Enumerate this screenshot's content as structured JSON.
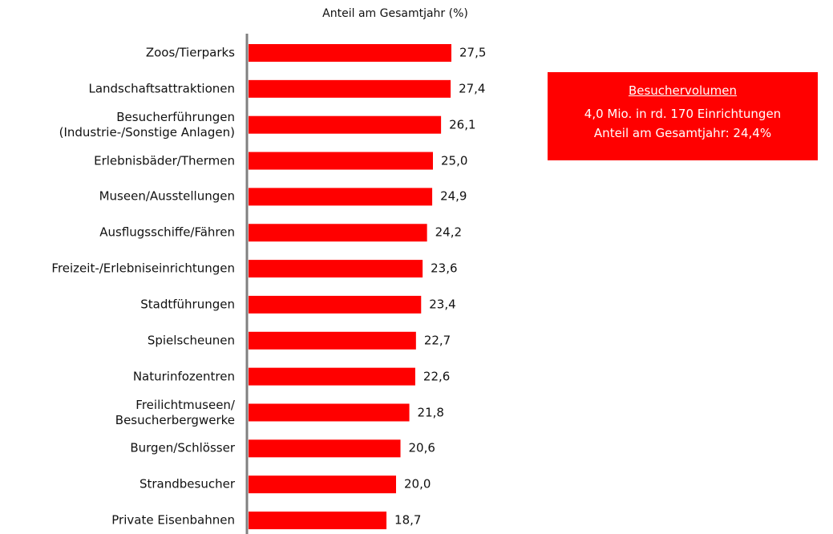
{
  "chart_data": {
    "type": "bar",
    "orientation": "horizontal",
    "axis_title": "Anteil am Gesamtjahr (%)",
    "categories": [
      "Zoos/Tierparks",
      "Landschaftsattraktionen",
      "Besucherführungen\n(Industrie-/Sonstige Anlagen)",
      "Erlebnisbäder/Thermen",
      "Museen/Ausstellungen",
      "Ausflugsschiffe/Fähren",
      "Freizeit-/Erlebniseinrichtungen",
      "Stadtführungen",
      "Spielscheunen",
      "Naturinfozentren",
      "Freilichtmuseen/\nBesucherbergwerke",
      "Burgen/Schlösser",
      "Strandbesucher",
      "Private Eisenbahnen"
    ],
    "values": [
      27.5,
      27.4,
      26.1,
      25.0,
      24.9,
      24.2,
      23.6,
      23.4,
      22.7,
      22.6,
      21.8,
      20.6,
      20.0,
      18.7
    ],
    "value_labels": [
      "27,5",
      "27,4",
      "26,1",
      "25,0",
      "24,9",
      "24,2",
      "23,6",
      "23,4",
      "22,7",
      "22,6",
      "21,8",
      "20,6",
      "20,0",
      "18,7"
    ],
    "color": "#ff0000",
    "xlim": [
      0,
      30
    ],
    "info_box": {
      "title": "Besuchervolumen",
      "lines": [
        "4,0 Mio. in rd. 170 Einrichtungen",
        "Anteil am Gesamtjahr: 24,4%"
      ]
    }
  }
}
